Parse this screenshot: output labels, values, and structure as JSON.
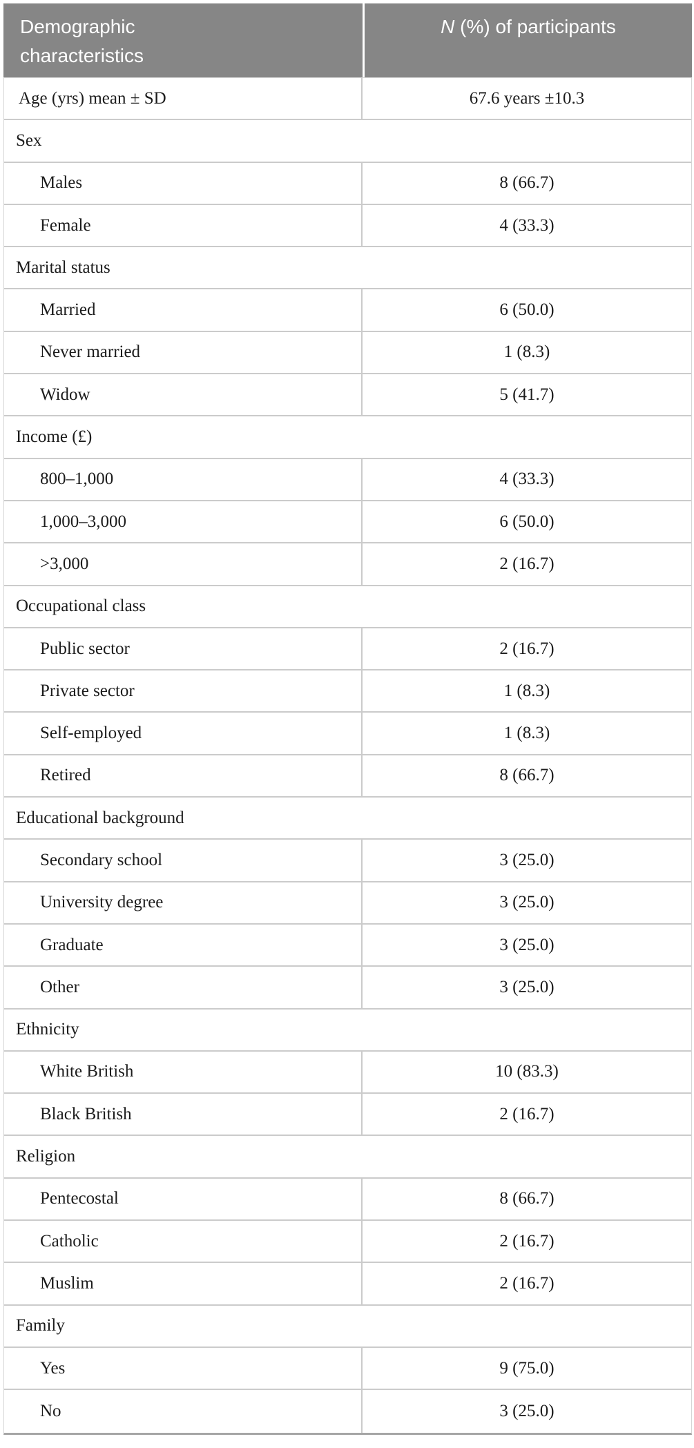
{
  "colors": {
    "header_bg": "#868686",
    "header_text": "#ffffff",
    "body_text": "#1c1c1c",
    "row_border": "#cbcbcb",
    "bottom_bar": "#a6a6a6",
    "edge_border": "#d5d5d5"
  },
  "table": {
    "header": {
      "col1": "Demographic characteristics",
      "col2_italic": "N",
      "col2_rest": " (%) of participants"
    },
    "rows": [
      {
        "type": "data",
        "indent": false,
        "label": "Age (yrs) mean ± SD",
        "value": "67.6 years ±10.3"
      },
      {
        "type": "category",
        "label": "Sex"
      },
      {
        "type": "data",
        "indent": true,
        "label": "Males",
        "value": "8 (66.7)"
      },
      {
        "type": "data",
        "indent": true,
        "label": "Female",
        "value": "4 (33.3)"
      },
      {
        "type": "category",
        "label": "Marital status"
      },
      {
        "type": "data",
        "indent": true,
        "label": "Married",
        "value": "6 (50.0)"
      },
      {
        "type": "data",
        "indent": true,
        "label": "Never married",
        "value": "1 (8.3)"
      },
      {
        "type": "data",
        "indent": true,
        "label": "Widow",
        "value": "5 (41.7)"
      },
      {
        "type": "category",
        "label": "Income (£)"
      },
      {
        "type": "data",
        "indent": true,
        "label": "800–1,000",
        "value": "4 (33.3)"
      },
      {
        "type": "data",
        "indent": true,
        "label": "1,000–3,000",
        "value": "6 (50.0)"
      },
      {
        "type": "data",
        "indent": true,
        "label": ">3,000",
        "value": "2 (16.7)"
      },
      {
        "type": "category",
        "label": "Occupational class"
      },
      {
        "type": "data",
        "indent": true,
        "label": "Public sector",
        "value": "2 (16.7)"
      },
      {
        "type": "data",
        "indent": true,
        "label": "Private sector",
        "value": "1 (8.3)"
      },
      {
        "type": "data",
        "indent": true,
        "label": "Self-employed",
        "value": "1 (8.3)"
      },
      {
        "type": "data",
        "indent": true,
        "label": "Retired",
        "value": "8 (66.7)"
      },
      {
        "type": "category",
        "label": "Educational background"
      },
      {
        "type": "data",
        "indent": true,
        "label": "Secondary school",
        "value": "3 (25.0)"
      },
      {
        "type": "data",
        "indent": true,
        "label": "University degree",
        "value": "3 (25.0)"
      },
      {
        "type": "data",
        "indent": true,
        "label": "Graduate",
        "value": "3 (25.0)"
      },
      {
        "type": "data",
        "indent": true,
        "label": "Other",
        "value": "3 (25.0)"
      },
      {
        "type": "category",
        "label": "Ethnicity"
      },
      {
        "type": "data",
        "indent": true,
        "label": "White British",
        "value": "10 (83.3)"
      },
      {
        "type": "data",
        "indent": true,
        "label": "Black British",
        "value": "2 (16.7)"
      },
      {
        "type": "category",
        "label": "Religion"
      },
      {
        "type": "data",
        "indent": true,
        "label": "Pentecostal",
        "value": "8 (66.7)"
      },
      {
        "type": "data",
        "indent": true,
        "label": "Catholic",
        "value": "2 (16.7)"
      },
      {
        "type": "data",
        "indent": true,
        "label": "Muslim",
        "value": "2 (16.7)"
      },
      {
        "type": "category",
        "label": "Family"
      },
      {
        "type": "data",
        "indent": true,
        "label": "Yes",
        "value": "9 (75.0)"
      },
      {
        "type": "data",
        "indent": true,
        "label": "No",
        "value": "3 (25.0)"
      }
    ]
  }
}
